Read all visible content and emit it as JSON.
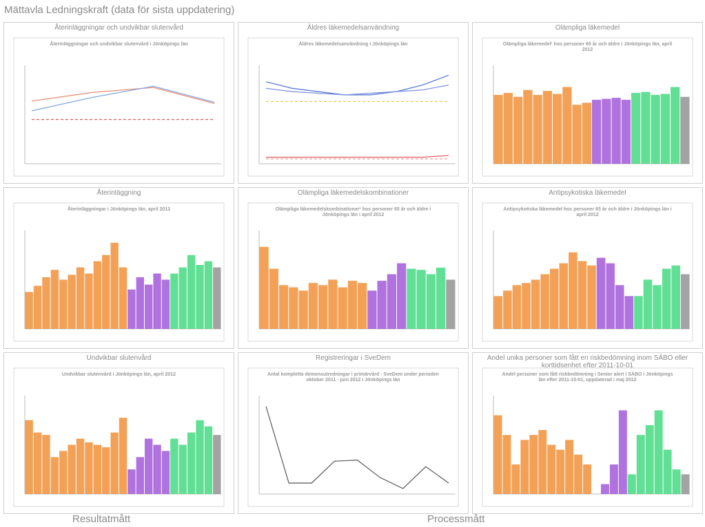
{
  "header": {
    "title": "Mättavla Ledningskraft (data för sista uppdatering)"
  },
  "chart_data": [
    {
      "type": "line",
      "panel_title": "Återinläggningar och undvikbar slutenvård",
      "title": "Återinläggningar och undvikbar slutenvård i Jönköpings län",
      "ylim": [
        10,
        18
      ],
      "series": [
        {
          "color": "#e8836b",
          "values": [
            15.1,
            15.8,
            16.2,
            14.9
          ],
          "dash": false
        },
        {
          "color": "#7fa6e0",
          "values": [
            14.3,
            15.4,
            16.3,
            15.0
          ],
          "dash": false
        },
        {
          "color": "#e05a5a",
          "values": [
            13.6,
            13.6,
            13.6,
            13.6
          ],
          "dash": true
        }
      ]
    },
    {
      "type": "line",
      "panel_title": "Äldres läkemedelsanvändning",
      "title": "Äldres läkemedelsanvändning i Jönköpings län",
      "ylim": [
        0,
        30
      ],
      "series": [
        {
          "color": "#4a6fd0",
          "values": [
            25,
            23,
            22,
            21,
            21,
            22,
            24,
            27
          ],
          "dash": false
        },
        {
          "color": "#7b8fe0",
          "values": [
            23,
            22,
            21.5,
            21,
            21.5,
            22,
            22.5,
            24
          ],
          "dash": false
        },
        {
          "color": "#e8c23a",
          "values": [
            19,
            19,
            19,
            19,
            19,
            19,
            19,
            19
          ],
          "dash": true
        },
        {
          "color": "#e05a5a",
          "values": [
            2,
            2,
            2,
            2,
            2,
            2,
            2,
            2.5
          ],
          "dash": false
        },
        {
          "color": "#f09a9a",
          "values": [
            1.5,
            1.5,
            1.5,
            1.5,
            1.5,
            1.5,
            1.5,
            1.5
          ],
          "dash": true
        }
      ]
    },
    {
      "type": "bar",
      "panel_title": "Olämpliga läkemedel",
      "title": "Olämpliga läkemedel¹ hos personer 65 år och äldre i Jönköpings län, april 2012",
      "ylim": [
        0,
        100
      ],
      "values": [
        70,
        72,
        68,
        75,
        70,
        74,
        71,
        78,
        60,
        62,
        65,
        66,
        67,
        65,
        72,
        73,
        70,
        71,
        78,
        68
      ],
      "colors": [
        "#f08a2c",
        "#f08a2c",
        "#f08a2c",
        "#f08a2c",
        "#f08a2c",
        "#f08a2c",
        "#f08a2c",
        "#f08a2c",
        "#f08a2c",
        "#f08a2c",
        "#9b4fd6",
        "#9b4fd6",
        "#9b4fd6",
        "#9b4fd6",
        "#3ad87a",
        "#3ad87a",
        "#3ad87a",
        "#3ad87a",
        "#3ad87a",
        "#8c8c8c"
      ]
    },
    {
      "type": "bar",
      "panel_title": "Återinläggning",
      "title": "Återinläggningar i Jönköpings län, april 2012",
      "ylim": [
        0,
        80
      ],
      "values": [
        30,
        35,
        42,
        48,
        40,
        44,
        50,
        45,
        55,
        60,
        70,
        50,
        32,
        42,
        36,
        45,
        40,
        45,
        50,
        60,
        52,
        55,
        50
      ],
      "colors": [
        "#f08a2c",
        "#f08a2c",
        "#f08a2c",
        "#f08a2c",
        "#f08a2c",
        "#f08a2c",
        "#f08a2c",
        "#f08a2c",
        "#f08a2c",
        "#f08a2c",
        "#f08a2c",
        "#f08a2c",
        "#9b4fd6",
        "#9b4fd6",
        "#9b4fd6",
        "#9b4fd6",
        "#9b4fd6",
        "#3ad87a",
        "#3ad87a",
        "#3ad87a",
        "#3ad87a",
        "#3ad87a",
        "#8c8c8c"
      ]
    },
    {
      "type": "bar",
      "panel_title": "Olämpliga läkemedelskombinationer",
      "title": "Olämpliga läkemedelskombinationer¹ hos personer 65 år och äldre i Jönköpings län i april 2012",
      "ylim": [
        0,
        90
      ],
      "values": [
        75,
        55,
        40,
        38,
        35,
        42,
        40,
        45,
        38,
        44,
        42,
        35,
        44,
        50,
        60,
        55,
        54,
        50,
        56,
        45
      ],
      "colors": [
        "#f08a2c",
        "#f08a2c",
        "#f08a2c",
        "#f08a2c",
        "#f08a2c",
        "#f08a2c",
        "#f08a2c",
        "#f08a2c",
        "#f08a2c",
        "#f08a2c",
        "#f08a2c",
        "#9b4fd6",
        "#9b4fd6",
        "#9b4fd6",
        "#9b4fd6",
        "#3ad87a",
        "#3ad87a",
        "#3ad87a",
        "#3ad87a",
        "#8c8c8c"
      ]
    },
    {
      "type": "bar",
      "panel_title": "Antipsykotiska läkemedel",
      "title": "Antipsykotiska läkemedel hos personer 65 år och äldre i Jönköpings län i april 2012",
      "ylim": [
        0,
        90
      ],
      "values": [
        30,
        35,
        40,
        42,
        45,
        50,
        55,
        60,
        70,
        62,
        58,
        65,
        60,
        40,
        30,
        30,
        45,
        40,
        55,
        58,
        50
      ],
      "colors": [
        "#f08a2c",
        "#f08a2c",
        "#f08a2c",
        "#f08a2c",
        "#f08a2c",
        "#f08a2c",
        "#f08a2c",
        "#f08a2c",
        "#f08a2c",
        "#f08a2c",
        "#f08a2c",
        "#9b4fd6",
        "#9b4fd6",
        "#9b4fd6",
        "#9b4fd6",
        "#3ad87a",
        "#3ad87a",
        "#3ad87a",
        "#3ad87a",
        "#3ad87a",
        "#8c8c8c"
      ]
    },
    {
      "type": "bar",
      "panel_title": "Undvikbar slutenvård",
      "title": "Undvikbar slutenvård i Jönköpings län, april 2012",
      "ylim": [
        0,
        80
      ],
      "values": [
        60,
        50,
        48,
        30,
        35,
        40,
        45,
        42,
        40,
        38,
        50,
        62,
        20,
        30,
        45,
        40,
        35,
        45,
        40,
        50,
        60,
        55,
        48
      ],
      "colors": [
        "#f08a2c",
        "#f08a2c",
        "#f08a2c",
        "#f08a2c",
        "#f08a2c",
        "#f08a2c",
        "#f08a2c",
        "#f08a2c",
        "#f08a2c",
        "#f08a2c",
        "#f08a2c",
        "#f08a2c",
        "#9b4fd6",
        "#9b4fd6",
        "#9b4fd6",
        "#9b4fd6",
        "#9b4fd6",
        "#3ad87a",
        "#3ad87a",
        "#3ad87a",
        "#3ad87a",
        "#3ad87a",
        "#8c8c8c"
      ]
    },
    {
      "type": "line",
      "panel_title": "Registreringar i SveDem",
      "title": "Antal kompletta demensutredningar i primärvård - SveDem under perioden oktober 2011 - juni 2012 i Jönköpings län",
      "ylim": [
        0,
        90
      ],
      "series": [
        {
          "color": "#555555",
          "values": [
            80,
            10,
            10,
            30,
            31,
            15,
            5,
            25,
            10
          ],
          "dash": false
        }
      ]
    },
    {
      "type": "bar",
      "panel_title": "Andel unika personer som fått en riskbedömning inom SÄBO eller korttidsenhet efter 2011-10-01",
      "title": "Andel personer som fått riskbedömning i Senior alert i SÄBO i Jönköpings län efter 2011-10-01, uppdaterad i maj 2012",
      "ylim": [
        0,
        100
      ],
      "values": [
        80,
        60,
        30,
        55,
        60,
        65,
        50,
        45,
        55,
        40,
        30,
        0,
        10,
        30,
        85,
        20,
        60,
        70,
        85,
        45,
        25,
        20
      ],
      "colors": [
        "#f08a2c",
        "#f08a2c",
        "#f08a2c",
        "#f08a2c",
        "#f08a2c",
        "#f08a2c",
        "#f08a2c",
        "#f08a2c",
        "#f08a2c",
        "#f08a2c",
        "#f08a2c",
        "#9b4fd6",
        "#9b4fd6",
        "#9b4fd6",
        "#9b4fd6",
        "#3ad87a",
        "#3ad87a",
        "#3ad87a",
        "#3ad87a",
        "#3ad87a",
        "#3ad87a",
        "#8c8c8c"
      ]
    }
  ],
  "footer": {
    "left": "Resultatmått",
    "right": "Processmått"
  }
}
